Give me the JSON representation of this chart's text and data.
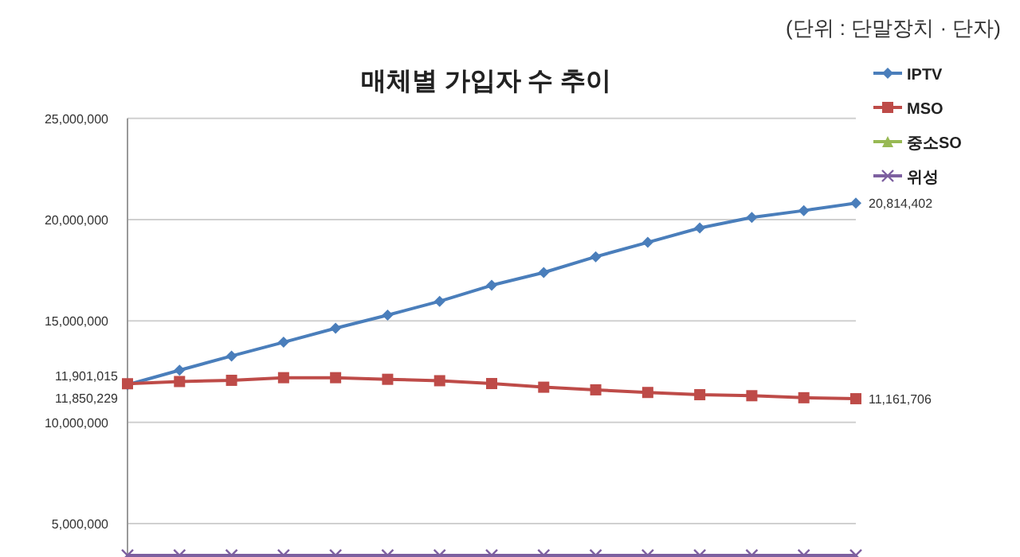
{
  "chart_data": {
    "type": "line",
    "title": "매체별 가입자 수 추이",
    "annotations": [
      "(단위 : 단말장치 · 단자)"
    ],
    "categories": [
      null,
      null,
      null,
      null,
      null,
      null,
      null,
      null,
      null,
      null,
      null,
      null,
      null,
      null,
      null
    ],
    "series": [
      {
        "name": "IPTV",
        "color": "#4a7ebb",
        "marker": "diamond",
        "values": [
          11850229,
          12570000,
          13270000,
          13950000,
          14640000,
          15290000,
          15970000,
          16760000,
          17390000,
          18170000,
          18880000,
          19590000,
          20110000,
          20450000,
          20814402
        ],
        "value_labels": [
          "11,850,229",
          null,
          null,
          null,
          null,
          null,
          null,
          null,
          null,
          null,
          null,
          null,
          null,
          null,
          "20,814,402"
        ]
      },
      {
        "name": "MSO",
        "color": "#be4b48",
        "marker": "square",
        "values": [
          11901015,
          12010000,
          12070000,
          12200000,
          12200000,
          12120000,
          12050000,
          11910000,
          11730000,
          11600000,
          11470000,
          11360000,
          11310000,
          11210000,
          11161706
        ],
        "value_labels": [
          "11,901,015",
          null,
          null,
          null,
          null,
          null,
          null,
          null,
          null,
          null,
          null,
          null,
          null,
          null,
          "11,161,706"
        ]
      },
      {
        "name": "중소SO",
        "color": "#98b954",
        "marker": "triangle",
        "values": [
          null,
          null,
          null,
          null,
          null,
          null,
          null,
          null,
          null,
          null,
          null,
          null,
          null,
          null,
          null
        ]
      },
      {
        "name": "위성",
        "color": "#7d60a0",
        "marker": "cross",
        "values": [
          3430000,
          3430000,
          3430000,
          3430000,
          3430000,
          3430000,
          3430000,
          3430000,
          3430000,
          3430000,
          3430000,
          3430000,
          3430000,
          3430000,
          3430000
        ]
      }
    ],
    "ylim": [
      3300000,
      25000000
    ],
    "yticks": [
      {
        "value": 5000000,
        "label": "5,000,000"
      },
      {
        "value": 10000000,
        "label": "10,000,000"
      },
      {
        "value": 15000000,
        "label": "15,000,000"
      },
      {
        "value": 20000000,
        "label": "20,000,000"
      },
      {
        "value": 25000000,
        "label": "25,000,000"
      }
    ],
    "grid": "y",
    "legend": "top right",
    "line_style": "solid"
  }
}
